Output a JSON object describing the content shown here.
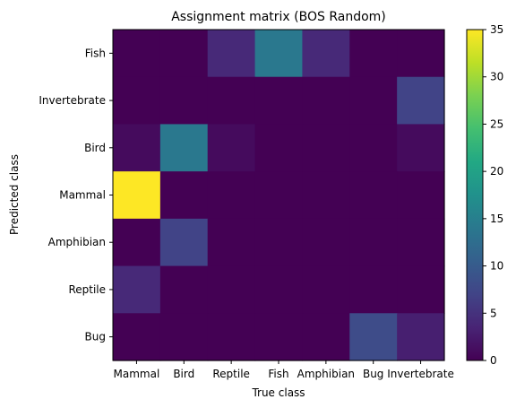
{
  "chart_data": {
    "type": "heatmap",
    "title": "Assignment matrix (BOS Random)",
    "xlabel": "True class",
    "ylabel": "Predicted class",
    "x_categories": [
      "Mammal",
      "Bird",
      "Reptile",
      "Fish",
      "Amphibian",
      "Bug",
      "Invertebrate"
    ],
    "y_categories": [
      "Fish",
      "Invertebrate",
      "Bird",
      "Mammal",
      "Amphibian",
      "Reptile",
      "Bug"
    ],
    "values": [
      [
        0,
        0,
        4,
        14,
        4,
        0,
        0
      ],
      [
        0,
        0,
        0,
        0,
        0,
        0,
        7
      ],
      [
        1,
        14,
        1,
        0,
        0,
        0,
        1
      ],
      [
        35,
        0,
        0,
        0,
        0,
        0,
        0
      ],
      [
        0,
        7,
        0,
        0,
        0,
        0,
        0
      ],
      [
        4,
        0,
        0,
        0,
        0,
        0,
        0
      ],
      [
        0,
        0,
        0,
        0,
        0,
        8,
        3
      ]
    ],
    "colorbar": {
      "range": [
        0,
        35
      ],
      "ticks": [
        0,
        5,
        10,
        15,
        20,
        25,
        30,
        35
      ]
    },
    "colormap": "viridis",
    "grid": false
  }
}
